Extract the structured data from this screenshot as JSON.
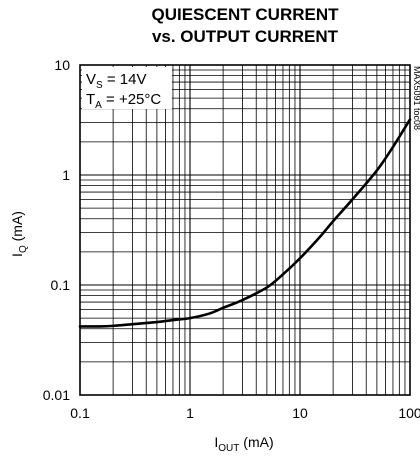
{
  "chart_data": {
    "type": "line",
    "title_line1": "QUIESCENT CURRENT",
    "title_line2": "vs. OUTPUT CURRENT",
    "xlabel_main": "I",
    "xlabel_sub": "OUT",
    "xlabel_unit": " (mA)",
    "ylabel_main": "I",
    "ylabel_sub": "Q",
    "ylabel_unit": " (mA)",
    "x_scale": "log",
    "y_scale": "log",
    "xlim": [
      0.1,
      100
    ],
    "ylim": [
      0.01,
      10
    ],
    "x_ticks": [
      0.1,
      1,
      10,
      100
    ],
    "x_tick_labels": [
      "0.1",
      "1",
      "10",
      "100"
    ],
    "y_ticks": [
      0.01,
      0.1,
      1,
      10
    ],
    "y_tick_labels": [
      "0.01",
      "0.1",
      "1",
      "10"
    ],
    "grid": true,
    "annotation": {
      "vs_main": "V",
      "vs_sub": "S",
      "vs_val": " = 14V",
      "ta_main": "T",
      "ta_sub": "A",
      "ta_val": " = +25°C",
      "part_number": "MAX5091 toc08"
    },
    "series": [
      {
        "color": "#000000",
        "x": [
          0.1,
          0.15,
          0.2,
          0.3,
          0.5,
          0.7,
          1.0,
          1.5,
          2.0,
          3.0,
          5.0,
          7.0,
          10.0,
          15.0,
          20.0,
          30.0,
          50.0,
          70.0,
          100.0
        ],
        "y": [
          0.042,
          0.042,
          0.0425,
          0.044,
          0.046,
          0.048,
          0.05,
          0.055,
          0.062,
          0.073,
          0.095,
          0.125,
          0.175,
          0.27,
          0.38,
          0.6,
          1.1,
          1.8,
          3.2
        ]
      }
    ]
  }
}
